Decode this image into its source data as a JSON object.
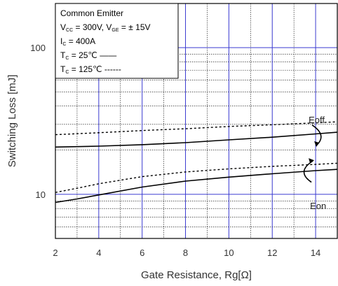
{
  "chart_data": {
    "type": "line",
    "xlabel": "Gate Resistance, Rg[Ω]",
    "ylabel": "Switching Loss [mJ]",
    "xlim": [
      2,
      15
    ],
    "ylim": [
      5,
      200
    ],
    "yscale": "log",
    "xticks": [
      2,
      4,
      6,
      8,
      10,
      12,
      14
    ],
    "yticks": [
      10,
      100
    ],
    "grid": true,
    "legend": {
      "lines": [
        {
          "id": "l1",
          "parts": [
            {
              "t": "Common Emitter"
            }
          ]
        },
        {
          "id": "l2",
          "parts": [
            {
              "t": "V"
            },
            {
              "t": "CC",
              "sub": true
            },
            {
              "t": " = 300V, V"
            },
            {
              "t": "GE",
              "sub": true
            },
            {
              "t": " = ± 15V"
            }
          ]
        },
        {
          "id": "l3",
          "parts": [
            {
              "t": "I"
            },
            {
              "t": "C",
              "sub": true
            },
            {
              "t": " = 400A"
            }
          ]
        },
        {
          "id": "l4",
          "parts": [
            {
              "t": "T"
            },
            {
              "t": "C",
              "sub": true
            },
            {
              "t": " =  25℃ ——"
            }
          ]
        },
        {
          "id": "l5",
          "parts": [
            {
              "t": "T"
            },
            {
              "t": "C",
              "sub": true
            },
            {
              "t": " = 125℃ ------"
            }
          ]
        }
      ]
    },
    "annotations": [
      {
        "text": "Eoff",
        "near_x": 14,
        "near_y": 30
      },
      {
        "text": "Eon",
        "near_x": 14,
        "near_y": 11
      }
    ],
    "series": [
      {
        "curve": "Eoff",
        "style": "solid",
        "x": [
          2,
          4,
          6,
          8,
          10,
          12,
          14,
          15
        ],
        "y": [
          21,
          21.3,
          21.8,
          22.5,
          23.5,
          24.5,
          25.8,
          26.5
        ]
      },
      {
        "curve": "Eoff",
        "style": "dashed",
        "x": [
          2,
          4,
          6,
          8,
          10,
          12,
          14,
          15
        ],
        "y": [
          25.5,
          26.3,
          27.2,
          28,
          29,
          29.8,
          30.7,
          31.2
        ]
      },
      {
        "curve": "Eon",
        "style": "solid",
        "x": [
          2,
          3,
          4,
          6,
          8,
          10,
          12,
          14,
          15
        ],
        "y": [
          8.8,
          9.3,
          9.9,
          11.2,
          12.3,
          13.1,
          13.8,
          14.5,
          14.8
        ]
      },
      {
        "curve": "Eon",
        "style": "dashed",
        "x": [
          2,
          3,
          4,
          6,
          8,
          10,
          12,
          14,
          15
        ],
        "y": [
          10.3,
          11,
          11.8,
          13.2,
          14.2,
          14.9,
          15.5,
          16,
          16.3
        ]
      }
    ]
  }
}
